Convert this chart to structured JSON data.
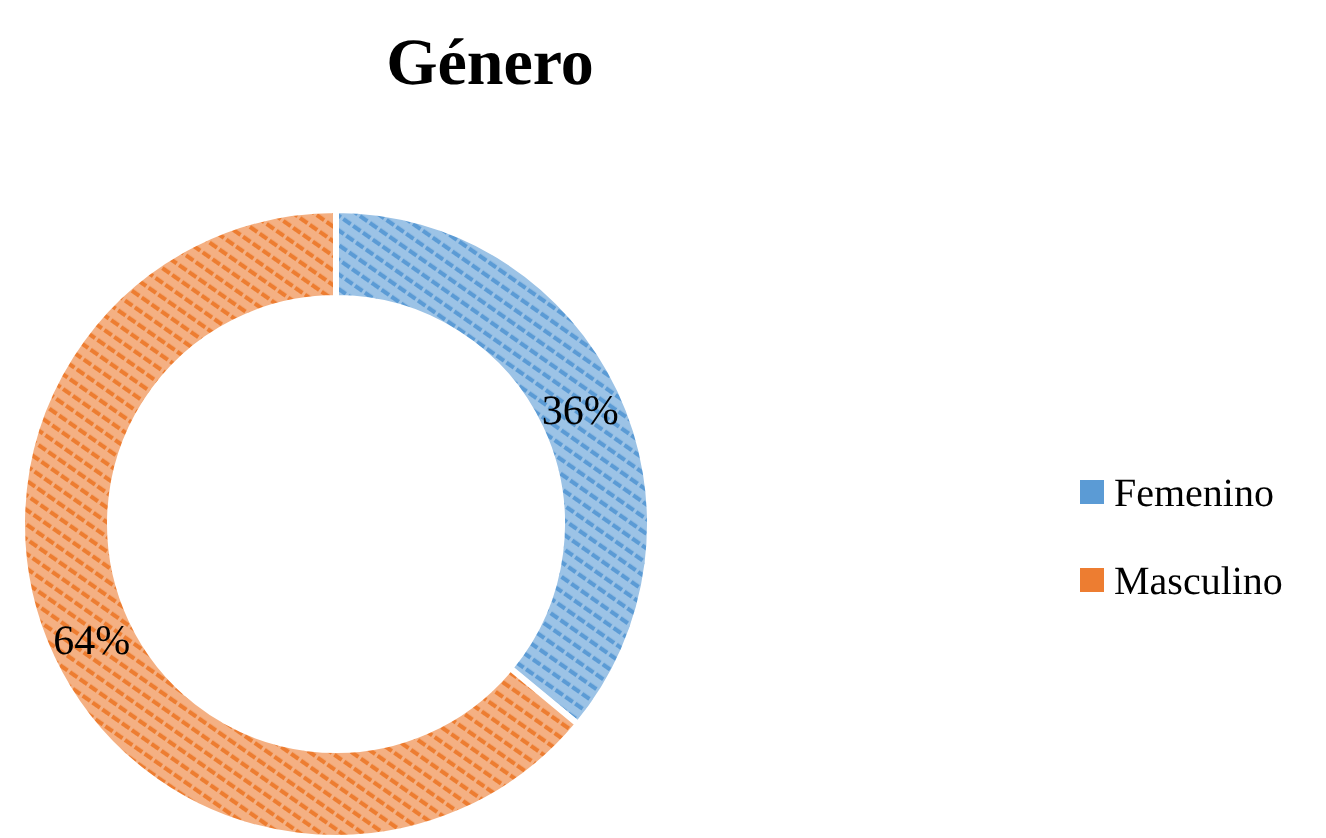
{
  "chart_data": {
    "type": "donut",
    "title": "Género",
    "categories": [
      "Femenino",
      "Masculino"
    ],
    "values": [
      36,
      64
    ],
    "colors": [
      "#5b9bd5",
      "#ed7d31"
    ],
    "value_labels": [
      "36%",
      "64%"
    ],
    "legend": "right"
  }
}
